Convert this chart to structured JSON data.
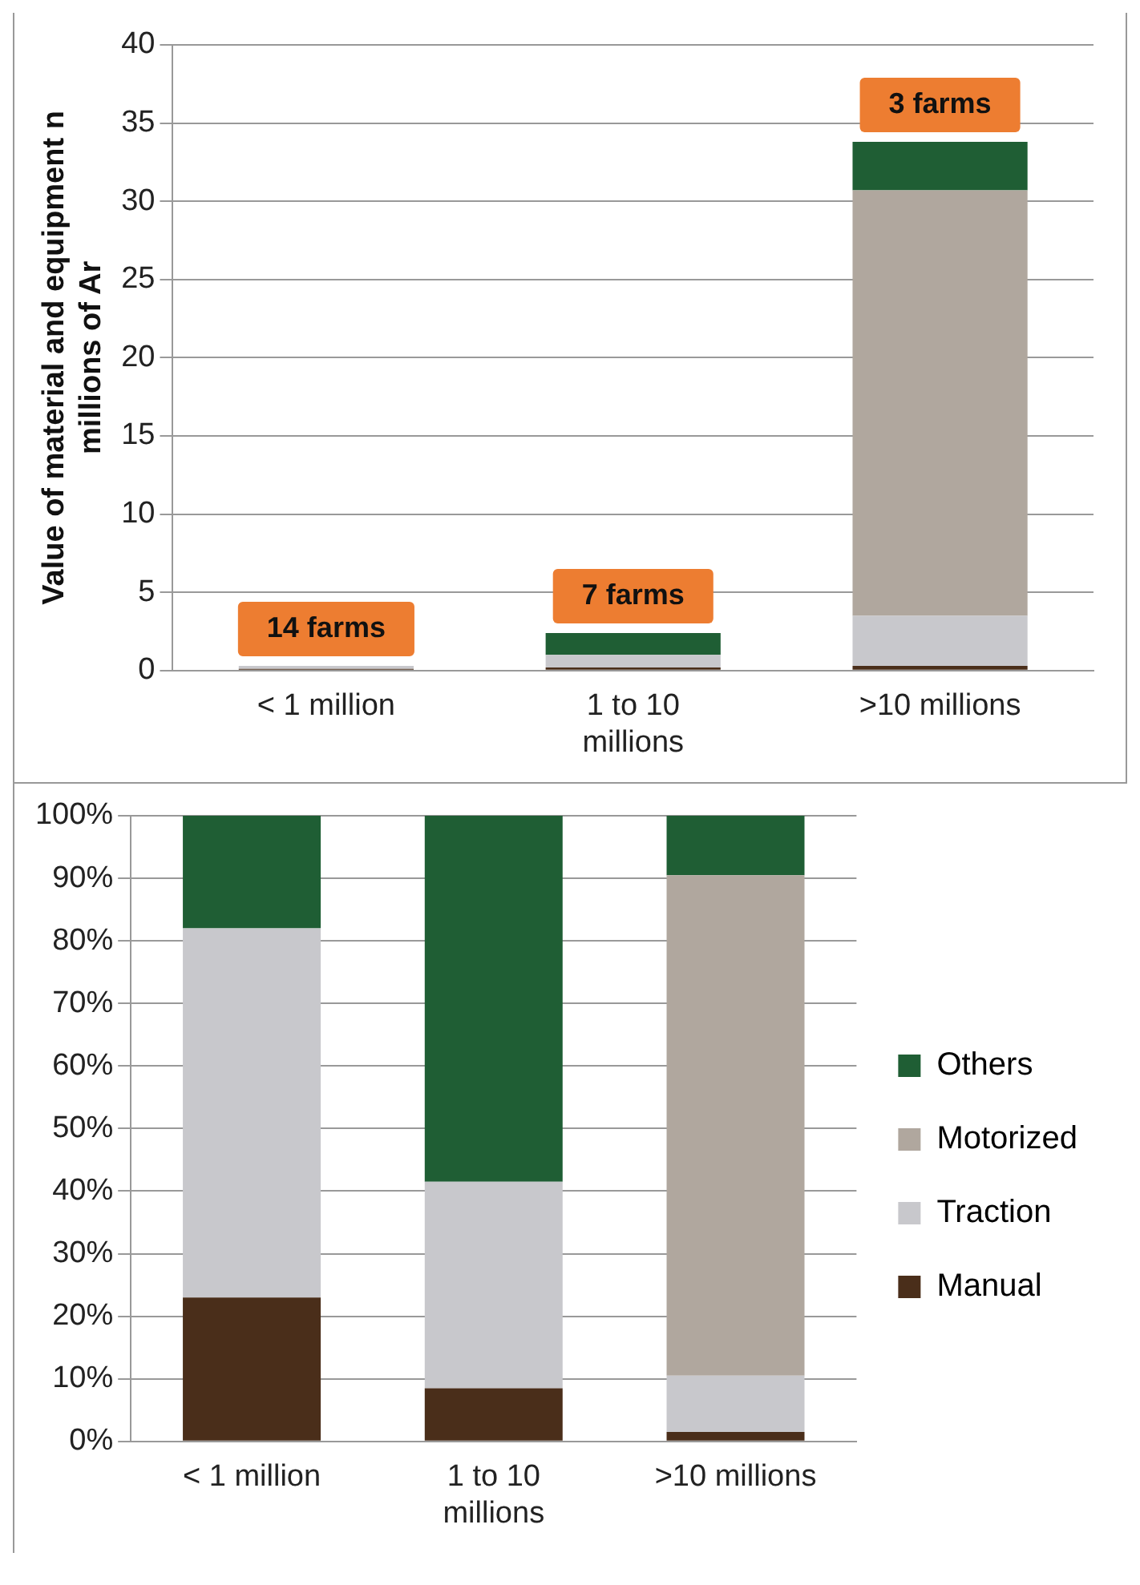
{
  "chart_data": [
    {
      "type": "bar",
      "stacked": true,
      "ylabel": "Value of material and equipment n millions of Ar",
      "categories": [
        "< 1 million",
        "1 to 10 millions",
        ">10 millions"
      ],
      "ylim": [
        0,
        40
      ],
      "yticks": [
        0,
        5,
        10,
        15,
        20,
        25,
        30,
        35,
        40
      ],
      "grid": "y",
      "series": [
        {
          "color": "#4a2e1a",
          "values": [
            0.1,
            0.2,
            0.3
          ]
        },
        {
          "color": "#c8c8cc",
          "values": [
            0.2,
            0.8,
            3.2
          ]
        },
        {
          "color": "#b0a79e",
          "values": [
            0,
            0,
            27.2
          ]
        },
        {
          "color": "#1f5e34",
          "values": [
            0,
            1.4,
            3.1
          ]
        }
      ],
      "annotations": [
        {
          "text": "14 farms",
          "x": "< 1 million",
          "y": 0.3
        },
        {
          "text": "7 farms",
          "x": "1 to 10 millions",
          "y": 2.4
        },
        {
          "text": "3 farms",
          "x": ">10 millions",
          "y": 33.8
        }
      ]
    },
    {
      "type": "bar",
      "stacked": true,
      "categories": [
        "< 1 million",
        "1 to 10 millions",
        ">10 millions"
      ],
      "ylim": [
        0,
        100
      ],
      "grid": "y",
      "legend": "right",
      "yticks": [
        {
          "value": 0,
          "label": "0%"
        },
        {
          "value": 10,
          "label": "10%"
        },
        {
          "value": 20,
          "label": "20%"
        },
        {
          "value": 30,
          "label": "30%"
        },
        {
          "value": 40,
          "label": "40%"
        },
        {
          "value": 50,
          "label": "50%"
        },
        {
          "value": 60,
          "label": "60%"
        },
        {
          "value": 70,
          "label": "70%"
        },
        {
          "value": 80,
          "label": "80%"
        },
        {
          "value": 90,
          "label": "90%"
        },
        {
          "value": 100,
          "label": "100%"
        }
      ],
      "series": [
        {
          "name": "Manual",
          "color": "#4a2e1a",
          "values": [
            23,
            8.5,
            1.5
          ]
        },
        {
          "name": "Traction",
          "color": "#c8c8cc",
          "values": [
            59,
            33,
            9
          ]
        },
        {
          "name": "Motorized",
          "color": "#b0a79e",
          "values": [
            0,
            0,
            80
          ]
        },
        {
          "name": "Others",
          "color": "#1f5e34",
          "values": [
            18,
            58.5,
            9.5
          ]
        }
      ]
    }
  ]
}
